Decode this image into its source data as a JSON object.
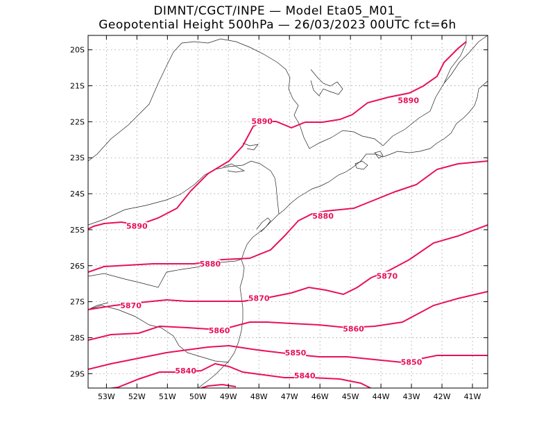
{
  "header": {
    "line1": "DIMNT/CGCT/INPE  —   Model Eta05_M01_",
    "line2": "Geopotential Height 500hPa  —   26/03/2023 00UTC fct=6h"
  },
  "map": {
    "lon_range": [
      -53.6,
      -40.5
    ],
    "lat_range": [
      -29.4,
      -19.6
    ],
    "lon_ticks": [
      {
        "value": -53,
        "label": "53W"
      },
      {
        "value": -52,
        "label": "52W"
      },
      {
        "value": -51,
        "label": "51W"
      },
      {
        "value": -50,
        "label": "50W"
      },
      {
        "value": -49,
        "label": "49W"
      },
      {
        "value": -48,
        "label": "48W"
      },
      {
        "value": -47,
        "label": "47W"
      },
      {
        "value": -46,
        "label": "46W"
      },
      {
        "value": -45,
        "label": "45W"
      },
      {
        "value": -44,
        "label": "44W"
      },
      {
        "value": -43,
        "label": "43W"
      },
      {
        "value": -42,
        "label": "42W"
      },
      {
        "value": -41,
        "label": "41W"
      }
    ],
    "lat_ticks": [
      {
        "value": -20,
        "label": "20S"
      },
      {
        "value": -21,
        "label": "21S"
      },
      {
        "value": -22,
        "label": "22S"
      },
      {
        "value": -23,
        "label": "23S"
      },
      {
        "value": -24,
        "label": "24S"
      },
      {
        "value": -25,
        "label": "25S"
      },
      {
        "value": -26,
        "label": "26S"
      },
      {
        "value": -27,
        "label": "27S"
      },
      {
        "value": -28,
        "label": "28S"
      },
      {
        "value": -29,
        "label": "29S"
      }
    ],
    "grid": "dotted",
    "contour_color": "#e8105a",
    "contour_interval": 10,
    "contour_labels": [
      {
        "text": "5890",
        "lon": -43.1,
        "lat": -21.4
      },
      {
        "text": "5890",
        "lon": -47.9,
        "lat": -21.98
      },
      {
        "text": "5890",
        "lon": -52.0,
        "lat": -24.9
      },
      {
        "text": "5880",
        "lon": -45.9,
        "lat": -24.62
      },
      {
        "text": "5880",
        "lon": -49.6,
        "lat": -25.95
      },
      {
        "text": "5870",
        "lon": -43.8,
        "lat": -26.28
      },
      {
        "text": "5870",
        "lon": -48.0,
        "lat": -26.9
      },
      {
        "text": "5870",
        "lon": -52.2,
        "lat": -27.1
      },
      {
        "text": "5860",
        "lon": -44.9,
        "lat": -27.75
      },
      {
        "text": "5860",
        "lon": -49.3,
        "lat": -27.8
      },
      {
        "text": "5850",
        "lon": -46.8,
        "lat": -28.42
      },
      {
        "text": "5850",
        "lon": -43.0,
        "lat": -28.68
      },
      {
        "text": "5840",
        "lon": -46.5,
        "lat": -29.05
      },
      {
        "text": "5840",
        "lon": -50.4,
        "lat": -28.92
      }
    ]
  }
}
